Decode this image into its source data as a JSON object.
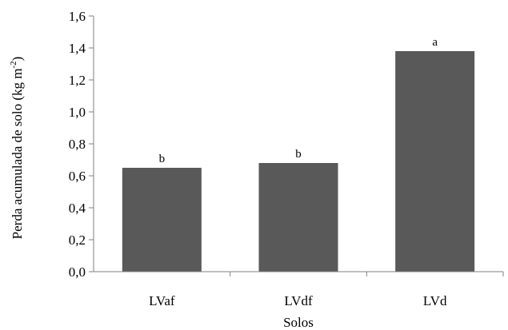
{
  "chart_data": {
    "type": "bar",
    "categories": [
      "LVaf",
      "LVdf",
      "LVd"
    ],
    "values": [
      0.65,
      0.68,
      1.38
    ],
    "data_labels": [
      "b",
      "b",
      "a"
    ],
    "xlabel": "Solos",
    "ylabel": "Perda acumulada de solo  (kg  m",
    "ylabel_superscript": "-2",
    "ylabel_close": ")",
    "ylim": [
      0,
      1.6
    ],
    "yticks": [
      0,
      0.2,
      0.4,
      0.6,
      0.8,
      1.0,
      1.2,
      1.4,
      1.6
    ],
    "ytick_labels": [
      "0,0",
      "0,2",
      "0,4",
      "0,6",
      "0,8",
      "1,0",
      "1,2",
      "1,4",
      "1,6"
    ],
    "bar_color": "#595959",
    "grid": false,
    "legend": "none"
  }
}
